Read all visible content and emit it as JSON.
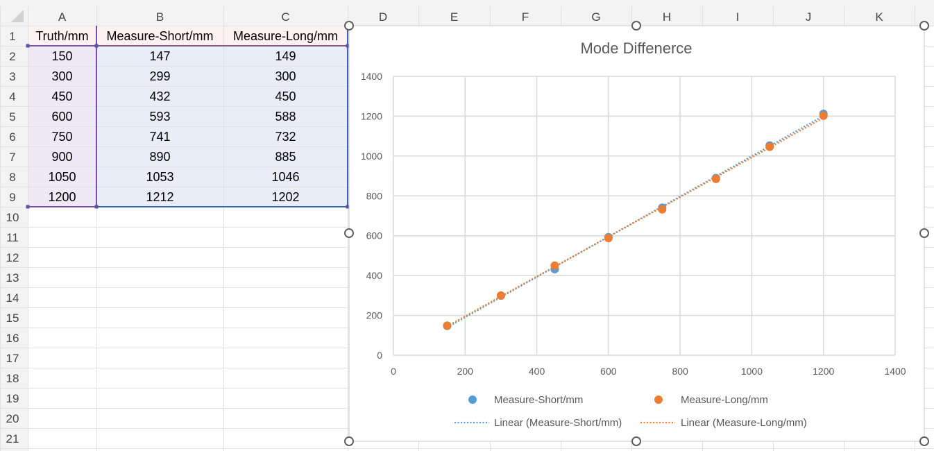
{
  "sheet": {
    "column_headers": [
      "A",
      "B",
      "C",
      "D",
      "E",
      "F",
      "G",
      "H",
      "I",
      "J",
      "K"
    ],
    "row_headers": [
      "1",
      "2",
      "3",
      "4",
      "5",
      "6",
      "7",
      "8",
      "9",
      "10",
      "11",
      "12",
      "13",
      "14",
      "15",
      "16",
      "17",
      "18",
      "19",
      "20",
      "21"
    ],
    "table": {
      "headers": [
        "Truth/mm",
        "Measure-Short/mm",
        "Measure-Long/mm"
      ],
      "rows": [
        [
          "150",
          "147",
          "149"
        ],
        [
          "300",
          "299",
          "300"
        ],
        [
          "450",
          "432",
          "450"
        ],
        [
          "600",
          "593",
          "588"
        ],
        [
          "750",
          "741",
          "732"
        ],
        [
          "900",
          "890",
          "885"
        ],
        [
          "1050",
          "1053",
          "1046"
        ],
        [
          "1200",
          "1212",
          "1202"
        ]
      ]
    },
    "colors": {
      "gridline": "#e1e1e1",
      "header_bg": "#f3f3f3",
      "sel_a": "#efe9f6",
      "sel_bc": "#e8edf7",
      "hdr_tint": "#fdf1f1"
    }
  },
  "chart_data": {
    "type": "scatter",
    "title": "Mode Diffenerce",
    "xlim": [
      0,
      1400
    ],
    "ylim": [
      0,
      1400
    ],
    "xticks": [
      "0",
      "200",
      "400",
      "600",
      "800",
      "1000",
      "1200",
      "1400"
    ],
    "yticks": [
      "0",
      "200",
      "400",
      "600",
      "800",
      "1000",
      "1200",
      "1400"
    ],
    "grid": true,
    "legend_position": "bottom",
    "series": [
      {
        "name": "Measure-Short/mm",
        "color": "#5b9bd5",
        "x": [
          150,
          300,
          450,
          600,
          750,
          900,
          1050,
          1200
        ],
        "y": [
          147,
          299,
          432,
          593,
          741,
          890,
          1053,
          1212
        ]
      },
      {
        "name": "Measure-Long/mm",
        "color": "#ed7d31",
        "x": [
          150,
          300,
          450,
          600,
          750,
          900,
          1050,
          1200
        ],
        "y": [
          149,
          300,
          450,
          588,
          732,
          885,
          1046,
          1202
        ]
      }
    ],
    "trendlines": [
      {
        "name": "Linear (Measure-Short/mm)",
        "color": "#5b9bd5",
        "series": 0
      },
      {
        "name": "Linear (Measure-Long/mm)",
        "color": "#ed7d31",
        "series": 1
      }
    ]
  }
}
